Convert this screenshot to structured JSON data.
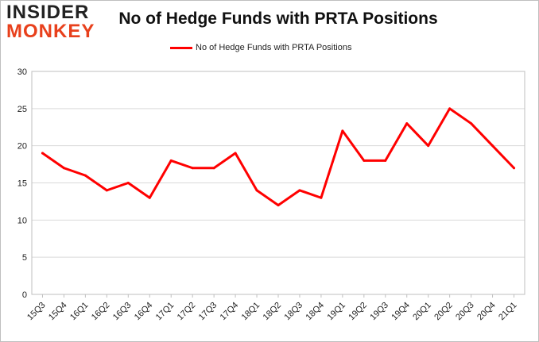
{
  "logo": {
    "line1": "INSIDER",
    "line2": "MONKEY"
  },
  "colors": {
    "series": "#ff0000",
    "grid": "#d9d9d9",
    "logo_accent": "#e8401c"
  },
  "chart_data": {
    "type": "line",
    "title": "No of Hedge Funds with PRTA Positions",
    "xlabel": "",
    "ylabel": "",
    "ylim": [
      0,
      30
    ],
    "yticks": [
      0,
      5,
      10,
      15,
      20,
      25,
      30
    ],
    "grid": true,
    "legend_position": "top-center",
    "categories": [
      "15Q3",
      "15Q4",
      "16Q1",
      "16Q2",
      "16Q3",
      "16Q4",
      "17Q1",
      "17Q2",
      "17Q3",
      "17Q4",
      "18Q1",
      "18Q2",
      "18Q3",
      "18Q4",
      "19Q1",
      "19Q2",
      "19Q3",
      "19Q4",
      "20Q1",
      "20Q2",
      "20Q3",
      "20Q4",
      "21Q1"
    ],
    "series": [
      {
        "name": "No of Hedge Funds with PRTA Positions",
        "values": [
          19,
          17,
          16,
          14,
          15,
          13,
          18,
          17,
          17,
          19,
          14,
          12,
          14,
          13,
          22,
          18,
          18,
          23,
          20,
          25,
          23,
          20,
          17
        ]
      }
    ]
  }
}
